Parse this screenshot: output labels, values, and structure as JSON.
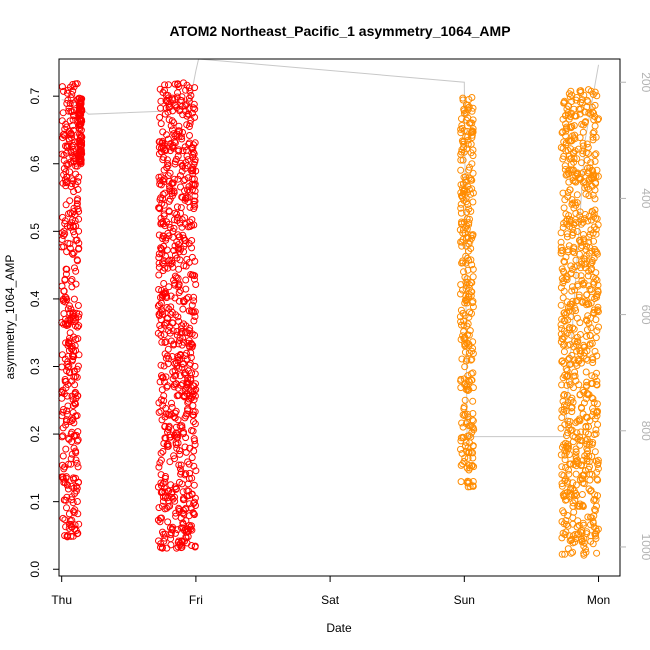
{
  "chart_data": {
    "type": "scatter",
    "title": "ATOM2 Northeast_Pacific_1 asymmetry_1064_AMP",
    "xlabel": "Date",
    "ylabel": "asymmetry_1064_AMP",
    "x_ticks": [
      "Thu",
      "Fri",
      "Sat",
      "Sun",
      "Mon"
    ],
    "xlim": [
      -0.02,
      4.16
    ],
    "ylim": [
      -0.01,
      0.755
    ],
    "y_ticks": [
      0.0,
      0.1,
      0.2,
      0.3,
      0.4,
      0.5,
      0.6,
      0.7
    ],
    "y2_ticks": [
      200,
      400,
      600,
      800,
      1000
    ],
    "y2lim": [
      1050,
      160
    ],
    "y2_color": "#b3b3b3",
    "grid": false,
    "legend": "none",
    "series": [
      {
        "color": "#ff0000",
        "x_range": [
          0.0,
          0.15
        ],
        "y_range": [
          0.045,
          0.725
        ],
        "clusters": [
          {
            "x": [
              0.0,
              0.13
            ],
            "y": [
              0.045,
              0.72
            ]
          },
          {
            "x": [
              0.13,
              0.15
            ],
            "y": [
              0.6,
              0.7
            ]
          }
        ]
      },
      {
        "color": "#ff0000",
        "x_range": [
          0.72,
          1.0
        ],
        "y_range": [
          0.03,
          0.72
        ],
        "clusters": [
          {
            "x": [
              0.72,
              1.0
            ],
            "y": [
              0.03,
              0.72
            ]
          }
        ]
      },
      {
        "color": "#ff8c00",
        "x_range": [
          2.97,
          3.08
        ],
        "y_range": [
          0.12,
          0.7
        ],
        "clusters": [
          {
            "x": [
              2.97,
              3.07
            ],
            "y": [
              0.12,
              0.7
            ]
          }
        ]
      },
      {
        "color": "#ff8c00",
        "x_range": [
          3.72,
          4.0
        ],
        "y_range": [
          0.02,
          0.71
        ],
        "clusters": [
          {
            "x": [
              3.72,
              4.0
            ],
            "y": [
              0.02,
              0.71
            ]
          }
        ]
      }
    ],
    "secondary_line": {
      "color": "#c8c8c8",
      "points": [
        [
          0.0,
          230
        ],
        [
          0.1,
          235
        ],
        [
          0.2,
          255
        ],
        [
          0.75,
          250
        ],
        [
          0.95,
          240
        ],
        [
          1.0,
          180
        ],
        [
          1.02,
          160
        ],
        [
          3.0,
          200
        ],
        [
          3.02,
          810
        ],
        [
          3.75,
          810
        ],
        [
          3.9,
          300
        ],
        [
          4.0,
          170
        ]
      ]
    }
  }
}
